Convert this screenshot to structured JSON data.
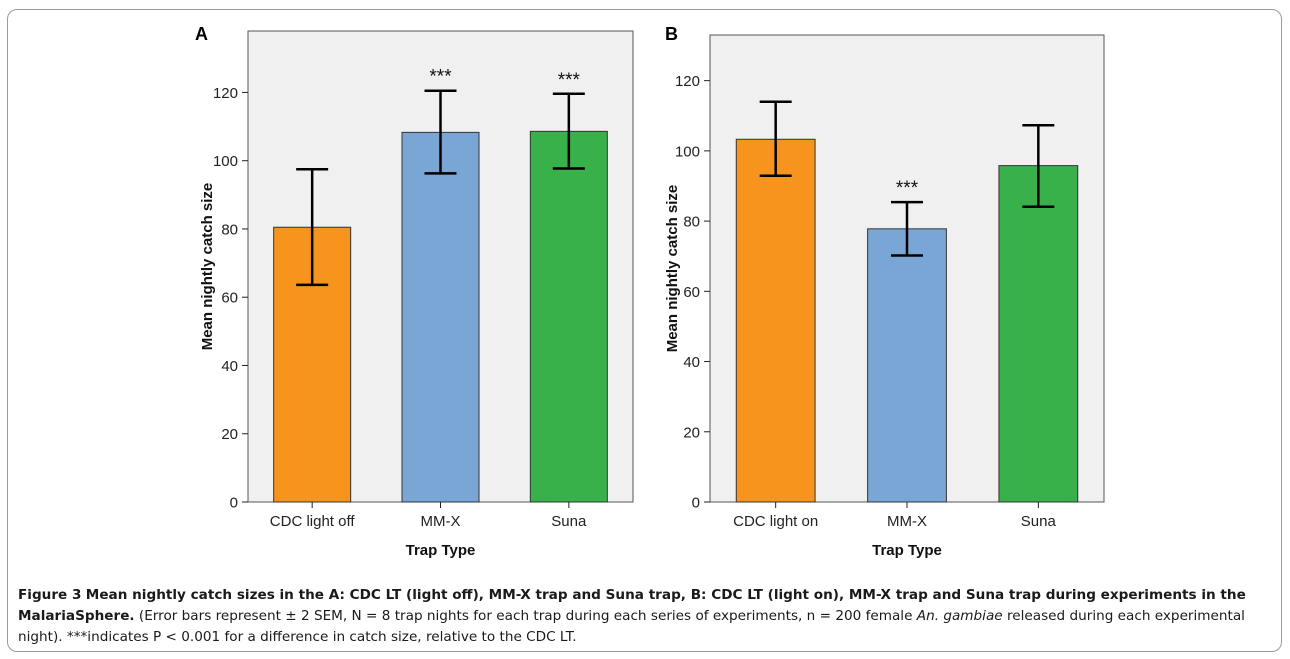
{
  "chart_data": [
    {
      "panel_label": "A",
      "type": "bar",
      "categories": [
        "CDC light off",
        "MM-X",
        "Suna"
      ],
      "values": [
        80.5,
        108.3,
        108.6
      ],
      "error_low": [
        63.6,
        96.3,
        97.7
      ],
      "error_high": [
        97.5,
        120.5,
        119.6
      ],
      "annotations": [
        "",
        "***",
        "***"
      ],
      "colors": [
        "#f7941d",
        "#7aa6d6",
        "#38b14a"
      ],
      "xlabel": "Trap Type",
      "ylabel": "Mean nightly catch size",
      "ylim": [
        0,
        138
      ],
      "yticks": [
        0,
        20,
        40,
        60,
        80,
        100,
        120
      ],
      "plot_background": "#f0f0f0"
    },
    {
      "panel_label": "B",
      "type": "bar",
      "categories": [
        "CDC light on",
        "MM-X",
        "Suna"
      ],
      "values": [
        103.3,
        77.8,
        95.8
      ],
      "error_low": [
        92.9,
        70.2,
        84.1
      ],
      "error_high": [
        114.0,
        85.4,
        107.3
      ],
      "annotations": [
        "",
        "***",
        ""
      ],
      "colors": [
        "#f7941d",
        "#7aa6d6",
        "#38b14a"
      ],
      "xlabel": "Trap Type",
      "ylabel": "Mean nightly catch size",
      "ylim": [
        0,
        133
      ],
      "yticks": [
        0,
        20,
        40,
        60,
        80,
        100,
        120
      ],
      "plot_background": "#f0f0f0"
    }
  ],
  "caption": {
    "figure_label": "Figure 3",
    "title": "Mean nightly catch sizes in the A: CDC LT (light off), MM-X trap and Suna trap, B: CDC LT (light on), MM-X trap and Suna trap during experiments in the MalariaSphere.",
    "body_before_italic": "(Error bars represent ± 2 SEM, N = 8 trap nights for each trap during each series of experiments, n = 200 female",
    "italic": "An. gambiae",
    "body_after_italic": "released during each experimental night). ***indicates P < 0.001 for a difference in catch size, relative to the CDC LT."
  }
}
